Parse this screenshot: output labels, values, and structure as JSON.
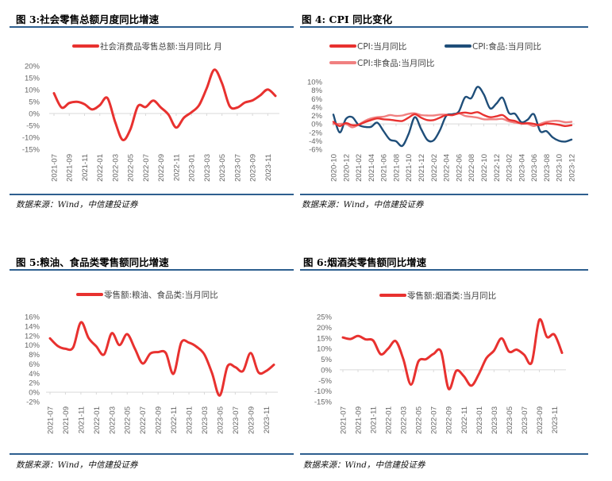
{
  "figures": [
    {
      "title": "图 3:社会零售总额月度同比增速",
      "source": "数据来源：Wind，中信建投证券"
    },
    {
      "title": "图 4: CPI 同比变化",
      "source": "数据来源：Wind，中信建投证券"
    },
    {
      "title": "图 5:粮油、食品类零售额同比增速",
      "source": "数据来源：Wind，中信建投证券"
    },
    {
      "title": "图 6:烟酒类零售额同比增速",
      "source": "数据来源：Wind，中信建投证券"
    }
  ],
  "chart_data": [
    {
      "type": "line",
      "categories": [
        "2021-07",
        "2021-08",
        "2021-09",
        "2021-10",
        "2021-11",
        "2021-12",
        "2022-01",
        "2022-02",
        "2022-03",
        "2022-04",
        "2022-05",
        "2022-06",
        "2022-07",
        "2022-08",
        "2022-09",
        "2022-10",
        "2022-11",
        "2022-12",
        "2023-01",
        "2023-02",
        "2023-03",
        "2023-04",
        "2023-05",
        "2023-06",
        "2023-07",
        "2023-08",
        "2023-09",
        "2023-10",
        "2023-11",
        "2023-12"
      ],
      "tick_labels": [
        "2021-07",
        "2021-09",
        "2021-11",
        "2022-01",
        "2022-03",
        "2022-05",
        "2022-07",
        "2022-09",
        "2022-11",
        "2023-01",
        "2023-03",
        "2023-05",
        "2023-07",
        "2023-09",
        "2023-11"
      ],
      "series": [
        {
          "name": "社会消费品零售总额:当月同比 月",
          "color": "#e8312f",
          "values": [
            8.5,
            2.5,
            4.4,
            4.9,
            3.9,
            1.7,
            3.5,
            6.5,
            -3.5,
            -11.1,
            -6.7,
            3.1,
            2.7,
            5.4,
            2.5,
            -0.5,
            -5.9,
            -1.8,
            0.5,
            3.5,
            10.6,
            18.4,
            12.7,
            3.1,
            2.5,
            4.6,
            5.5,
            7.6,
            10.1,
            7.4
          ]
        }
      ],
      "ylim": [
        -15,
        20
      ],
      "yticks": [
        "20%",
        "15%",
        "10%",
        "5%",
        "0%",
        "-5%",
        "-10%",
        "-15%"
      ],
      "ytick_values": [
        20,
        15,
        10,
        5,
        0,
        -5,
        -10,
        -15
      ],
      "legend": "top"
    },
    {
      "type": "line",
      "categories": [
        "2020-10",
        "2020-11",
        "2020-12",
        "2021-01",
        "2021-02",
        "2021-03",
        "2021-04",
        "2021-05",
        "2021-06",
        "2021-07",
        "2021-08",
        "2021-09",
        "2021-10",
        "2021-11",
        "2021-12",
        "2022-01",
        "2022-02",
        "2022-03",
        "2022-04",
        "2022-05",
        "2022-06",
        "2022-07",
        "2022-08",
        "2022-09",
        "2022-10",
        "2022-11",
        "2022-12",
        "2023-01",
        "2023-02",
        "2023-03",
        "2023-04",
        "2023-05",
        "2023-06",
        "2023-07",
        "2023-08",
        "2023-09",
        "2023-10",
        "2023-11",
        "2023-12"
      ],
      "tick_labels": [
        "2020-10",
        "2020-12",
        "2021-02",
        "2021-04",
        "2021-06",
        "2021-08",
        "2021-10",
        "2021-12",
        "2022-02",
        "2022-04",
        "2022-06",
        "2022-08",
        "2022-10",
        "2022-12",
        "2023-02",
        "2023-04",
        "2023-06",
        "2023-08",
        "2023-10",
        "2023-12"
      ],
      "series": [
        {
          "name": "CPI:当月同比",
          "color": "#e8312f",
          "values": [
            0.5,
            -0.5,
            0.2,
            -0.3,
            -0.2,
            0.4,
            0.9,
            1.3,
            1.1,
            1.0,
            0.8,
            0.7,
            1.5,
            2.3,
            1.5,
            0.9,
            0.9,
            1.5,
            2.1,
            2.1,
            2.5,
            2.7,
            2.5,
            2.8,
            2.1,
            1.6,
            1.8,
            2.1,
            1.0,
            0.7,
            0.1,
            0.2,
            0.0,
            -0.3,
            0.1,
            0.0,
            -0.2,
            -0.5,
            -0.3
          ]
        },
        {
          "name": "CPI:食品:当月同比",
          "color": "#1f4e79",
          "values": [
            2.2,
            -2.0,
            1.2,
            1.6,
            -0.2,
            -0.7,
            -0.7,
            0.3,
            -1.7,
            -3.7,
            -4.1,
            -5.2,
            -2.4,
            1.6,
            -1.2,
            -3.8,
            -3.9,
            -1.5,
            1.9,
            2.3,
            2.9,
            6.3,
            6.1,
            8.8,
            7.0,
            3.7,
            4.8,
            6.2,
            2.6,
            2.4,
            0.4,
            1.0,
            2.3,
            -1.7,
            -1.7,
            -3.2,
            -4.0,
            -4.2,
            -3.7
          ]
        },
        {
          "name": "CPI:非食品:当月同比",
          "color": "#f08080",
          "values": [
            0.0,
            0.0,
            0.0,
            -0.8,
            -0.2,
            0.7,
            1.3,
            1.6,
            1.7,
            2.1,
            1.9,
            2.0,
            2.4,
            2.5,
            2.1,
            2.0,
            2.0,
            2.2,
            2.2,
            2.1,
            2.5,
            1.9,
            1.7,
            1.5,
            1.1,
            1.1,
            1.1,
            1.2,
            0.6,
            0.3,
            0.1,
            0.0,
            -0.5,
            0.0,
            0.5,
            0.7,
            0.7,
            0.4,
            0.5
          ]
        }
      ],
      "ylim": [
        -6,
        10
      ],
      "yticks": [
        "10%",
        "8%",
        "6%",
        "4%",
        "2%",
        "0%",
        "-2%",
        "-4%",
        "-6%"
      ],
      "ytick_values": [
        10,
        8,
        6,
        4,
        2,
        0,
        -2,
        -4,
        -6
      ],
      "legend": "top"
    },
    {
      "type": "line",
      "categories": [
        "2021-07",
        "2021-08",
        "2021-09",
        "2021-10",
        "2021-11",
        "2021-12",
        "2022-01",
        "2022-02",
        "2022-03",
        "2022-04",
        "2022-05",
        "2022-06",
        "2022-07",
        "2022-08",
        "2022-09",
        "2022-10",
        "2022-11",
        "2022-12",
        "2023-01",
        "2023-02",
        "2023-03",
        "2023-04",
        "2023-05",
        "2023-06",
        "2023-07",
        "2023-08",
        "2023-09",
        "2023-10",
        "2023-11",
        "2023-12"
      ],
      "tick_labels": [
        "2021-07",
        "2021-09",
        "2021-11",
        "2022-01",
        "2022-03",
        "2022-05",
        "2022-07",
        "2022-09",
        "2022-11",
        "2023-01",
        "2023-03",
        "2023-05",
        "2023-07",
        "2023-09",
        "2023-11"
      ],
      "series": [
        {
          "name": "零售额:粮油、食品类:当月同比",
          "color": "#e8312f",
          "values": [
            11.4,
            9.8,
            9.2,
            9.5,
            14.8,
            11.5,
            9.7,
            8.0,
            12.5,
            10.0,
            12.3,
            9.2,
            6.1,
            8.2,
            8.5,
            8.3,
            3.9,
            10.5,
            10.5,
            9.6,
            8.0,
            4.0,
            -0.7,
            5.5,
            5.3,
            4.5,
            8.3,
            4.2,
            4.5,
            5.8
          ]
        }
      ],
      "ylim": [
        -2,
        16
      ],
      "yticks": [
        "16%",
        "14%",
        "12%",
        "10%",
        "8%",
        "6%",
        "4%",
        "2%",
        "0%",
        "-2%"
      ],
      "ytick_values": [
        16,
        14,
        12,
        10,
        8,
        6,
        4,
        2,
        0,
        -2
      ],
      "legend": "top"
    },
    {
      "type": "line",
      "categories": [
        "2021-07",
        "2021-08",
        "2021-09",
        "2021-10",
        "2021-11",
        "2021-12",
        "2022-01",
        "2022-02",
        "2022-03",
        "2022-04",
        "2022-05",
        "2022-06",
        "2022-07",
        "2022-08",
        "2022-09",
        "2022-10",
        "2022-11",
        "2022-12",
        "2023-01",
        "2023-02",
        "2023-03",
        "2023-04",
        "2023-05",
        "2023-06",
        "2023-07",
        "2023-08",
        "2023-09",
        "2023-10",
        "2023-11",
        "2023-12"
      ],
      "tick_labels": [
        "2021-07",
        "2021-09",
        "2021-11",
        "2022-01",
        "2022-03",
        "2022-05",
        "2022-07",
        "2022-09",
        "2022-11",
        "2023-01",
        "2023-03",
        "2023-05",
        "2023-07",
        "2023-09",
        "2023-11"
      ],
      "series": [
        {
          "name": "零售额:烟酒类:当月同比",
          "color": "#e8312f",
          "values": [
            15.2,
            14.5,
            15.9,
            14.3,
            13.8,
            7.3,
            10.0,
            13.5,
            5.0,
            -7.0,
            4.0,
            5.0,
            7.5,
            8.5,
            -9.0,
            -0.5,
            -3.0,
            -7.5,
            -2.0,
            5.5,
            9.0,
            14.8,
            8.5,
            9.5,
            7.0,
            3.5,
            23.5,
            15.5,
            16.5,
            8.0
          ]
        }
      ],
      "ylim": [
        -15,
        25
      ],
      "yticks": [
        "25%",
        "20%",
        "15%",
        "10%",
        "5%",
        "0%",
        "-5%",
        "-10%",
        "-15%"
      ],
      "ytick_values": [
        25,
        20,
        15,
        10,
        5,
        0,
        -5,
        -10,
        -15
      ],
      "legend": "top"
    }
  ]
}
